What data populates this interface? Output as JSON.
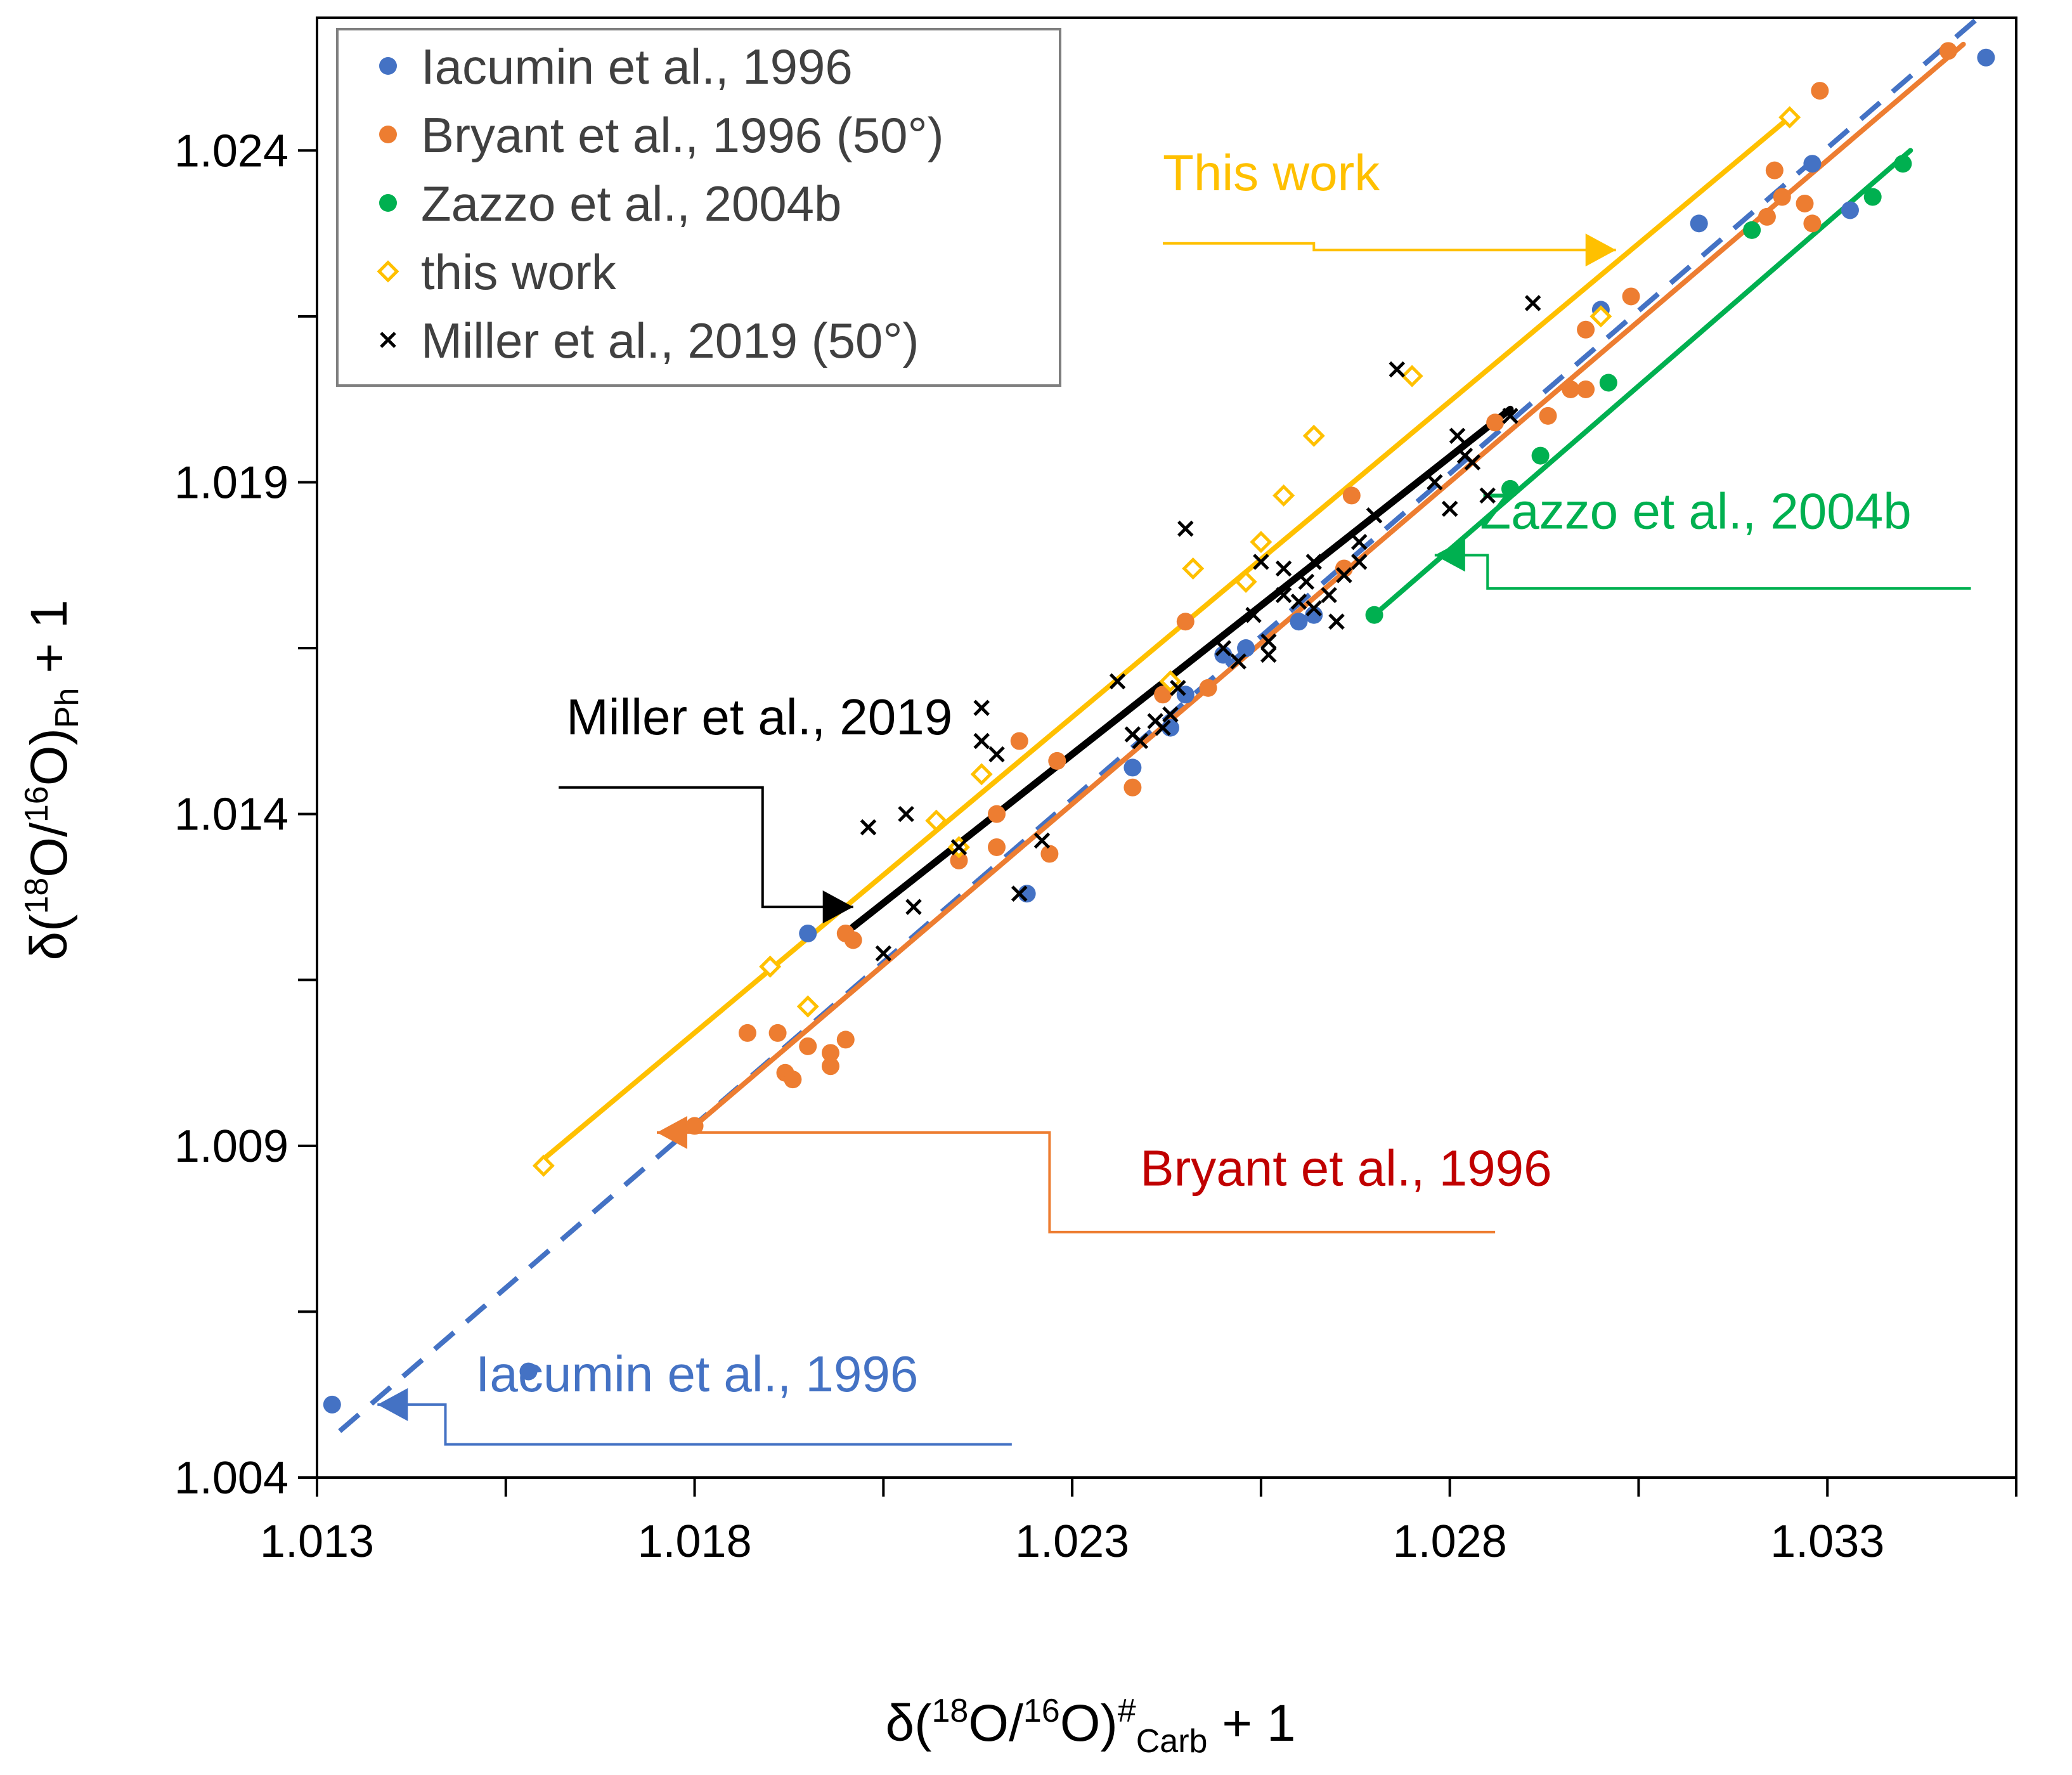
{
  "chart_data": {
    "type": "scatter",
    "xlabel_parts": [
      "δ(",
      "18",
      "O/",
      "16",
      "O)",
      "#",
      "Carb",
      " + 1"
    ],
    "ylabel_parts": [
      "δ(",
      "18",
      "O/",
      "16",
      "O)",
      "Ph",
      " + 1"
    ],
    "xlim": [
      1.013,
      1.0355
    ],
    "ylim": [
      1.004,
      1.026
    ],
    "xticks": [
      1.013,
      1.0155,
      1.018,
      1.0205,
      1.023,
      1.0255,
      1.028,
      1.0305,
      1.033,
      1.0355
    ],
    "xtick_labels": [
      "1.013",
      "",
      "1.018",
      "",
      "1.023",
      "",
      "1.028",
      "",
      "1.033",
      ""
    ],
    "yticks": [
      1.004,
      1.0065,
      1.009,
      1.0115,
      1.014,
      1.0165,
      1.019,
      1.0215,
      1.024
    ],
    "ytick_labels": [
      "1.004",
      "",
      "1.009",
      "",
      "1.014",
      "",
      "1.019",
      "",
      "1.024"
    ],
    "grid": false,
    "legend_position": "top-left",
    "colors": {
      "iacumin": "#4472C4",
      "bryant": "#ED7D31",
      "zazzo": "#00B050",
      "thiswork": "#FFC000",
      "miller": "#000000",
      "bryant_label": "#C00000"
    },
    "series": [
      {
        "name": "Iacumin et al., 1996",
        "marker": "circle",
        "color": "#4472C4",
        "points": [
          [
            1.0132,
            1.0051
          ],
          [
            1.0158,
            1.0056
          ],
          [
            1.0195,
            1.0122
          ],
          [
            1.0224,
            1.0128
          ],
          [
            1.0238,
            1.0147
          ],
          [
            1.0243,
            1.0153
          ],
          [
            1.0245,
            1.0158
          ],
          [
            1.025,
            1.0164
          ],
          [
            1.0253,
            1.0165
          ],
          [
            1.026,
            1.0169
          ],
          [
            1.0262,
            1.017
          ],
          [
            1.0313,
            1.0229
          ],
          [
            1.0328,
            1.0238
          ],
          [
            1.0333,
            1.0231
          ],
          [
            1.0351,
            1.0254
          ],
          [
            1.03,
            1.0216
          ]
        ]
      },
      {
        "name": "Bryant et al., 1996 (50°)",
        "marker": "circle",
        "color": "#ED7D31",
        "points": [
          [
            1.018,
            1.0093
          ],
          [
            1.0187,
            1.0107
          ],
          [
            1.0191,
            1.0107
          ],
          [
            1.0192,
            1.0101
          ],
          [
            1.0193,
            1.01
          ],
          [
            1.0195,
            1.0105
          ],
          [
            1.0198,
            1.0102
          ],
          [
            1.0198,
            1.0104
          ],
          [
            1.02,
            1.0106
          ],
          [
            1.02,
            1.0122
          ],
          [
            1.0201,
            1.0121
          ],
          [
            1.0215,
            1.0133
          ],
          [
            1.022,
            1.014
          ],
          [
            1.022,
            1.0135
          ],
          [
            1.0223,
            1.0151
          ],
          [
            1.0227,
            1.0134
          ],
          [
            1.0228,
            1.0148
          ],
          [
            1.0238,
            1.0144
          ],
          [
            1.0242,
            1.0158
          ],
          [
            1.0245,
            1.0169
          ],
          [
            1.0248,
            1.0159
          ],
          [
            1.0266,
            1.0177
          ],
          [
            1.0267,
            1.0188
          ],
          [
            1.0286,
            1.0199
          ],
          [
            1.0293,
            1.02
          ],
          [
            1.0296,
            1.0204
          ],
          [
            1.0298,
            1.0204
          ],
          [
            1.0298,
            1.0213
          ],
          [
            1.0304,
            1.0218
          ],
          [
            1.0322,
            1.023
          ],
          [
            1.0323,
            1.0237
          ],
          [
            1.0324,
            1.0233
          ],
          [
            1.0327,
            1.0232
          ],
          [
            1.0328,
            1.0229
          ],
          [
            1.0329,
            1.0249
          ],
          [
            1.0346,
            1.0255
          ]
        ]
      },
      {
        "name": "Zazzo et al., 2004b",
        "marker": "circle",
        "color": "#00B050",
        "points": [
          [
            1.027,
            1.017
          ],
          [
            1.0288,
            1.0189
          ],
          [
            1.0292,
            1.0194
          ],
          [
            1.0301,
            1.0205
          ],
          [
            1.032,
            1.0228
          ],
          [
            1.0336,
            1.0233
          ],
          [
            1.034,
            1.0238
          ]
        ]
      },
      {
        "name": "this work",
        "marker": "diamond",
        "color": "#FFC000",
        "points": [
          [
            1.016,
            1.0087
          ],
          [
            1.019,
            1.0117
          ],
          [
            1.0195,
            1.0111
          ],
          [
            1.0212,
            1.0139
          ],
          [
            1.0215,
            1.0135
          ],
          [
            1.0218,
            1.0146
          ],
          [
            1.0243,
            1.016
          ],
          [
            1.0246,
            1.0177
          ],
          [
            1.0253,
            1.0175
          ],
          [
            1.0255,
            1.0181
          ],
          [
            1.0258,
            1.0188
          ],
          [
            1.0262,
            1.0197
          ],
          [
            1.0275,
            1.0206
          ],
          [
            1.03,
            1.0215
          ],
          [
            1.0325,
            1.0245
          ]
        ]
      },
      {
        "name": "Miller et al., 2019 (50°)",
        "marker": "x",
        "color": "#000000",
        "points": [
          [
            1.0203,
            1.0138
          ],
          [
            1.0205,
            1.0119
          ],
          [
            1.0208,
            1.014
          ],
          [
            1.0209,
            1.0126
          ],
          [
            1.0215,
            1.0135
          ],
          [
            1.0218,
            1.0151
          ],
          [
            1.0218,
            1.0156
          ],
          [
            1.022,
            1.0149
          ],
          [
            1.0223,
            1.0128
          ],
          [
            1.0226,
            1.0136
          ],
          [
            1.0236,
            1.016
          ],
          [
            1.0238,
            1.0152
          ],
          [
            1.0239,
            1.0151
          ],
          [
            1.0241,
            1.0154
          ],
          [
            1.0242,
            1.0153
          ],
          [
            1.0243,
            1.0155
          ],
          [
            1.0244,
            1.0159
          ],
          [
            1.0245,
            1.0183
          ],
          [
            1.025,
            1.0165
          ],
          [
            1.0252,
            1.0163
          ],
          [
            1.0254,
            1.017
          ],
          [
            1.0256,
            1.0166
          ],
          [
            1.0258,
            1.0173
          ],
          [
            1.0258,
            1.0177
          ],
          [
            1.026,
            1.0172
          ],
          [
            1.0261,
            1.0175
          ],
          [
            1.0262,
            1.0178
          ],
          [
            1.0264,
            1.0173
          ],
          [
            1.0266,
            1.0176
          ],
          [
            1.0268,
            1.0181
          ],
          [
            1.027,
            1.0185
          ],
          [
            1.0273,
            1.0207
          ],
          [
            1.0278,
            1.019
          ],
          [
            1.028,
            1.0186
          ],
          [
            1.0281,
            1.0197
          ],
          [
            1.0282,
            1.0194
          ],
          [
            1.0283,
            1.0193
          ],
          [
            1.0285,
            1.0188
          ],
          [
            1.0288,
            1.02
          ],
          [
            1.0291,
            1.0217
          ],
          [
            1.0255,
            1.0178
          ],
          [
            1.0256,
            1.0164
          ],
          [
            1.0262,
            1.0171
          ],
          [
            1.0265,
            1.0169
          ],
          [
            1.0268,
            1.0178
          ]
        ]
      }
    ],
    "fit_lines": [
      {
        "name": "Iacumin et al., 1996",
        "color": "#4472C4",
        "dashed": true,
        "x": [
          1.0133,
          1.0351
        ],
        "y": [
          1.0047,
          1.0261
        ]
      },
      {
        "name": "Bryant et al., 1996",
        "color": "#ED7D31",
        "dashed": false,
        "x": [
          1.018,
          1.0348
        ],
        "y": [
          1.0093,
          1.0256
        ]
      },
      {
        "name": "Zazzo et al., 2004b",
        "color": "#00B050",
        "dashed": false,
        "x": [
          1.027,
          1.0341
        ],
        "y": [
          1.017,
          1.024
        ]
      },
      {
        "name": "This work",
        "color": "#FFC000",
        "dashed": false,
        "x": [
          1.016,
          1.0325
        ],
        "y": [
          1.0088,
          1.0245
        ]
      },
      {
        "name": "Miller et al., 2019",
        "color": "#000000",
        "dashed": false,
        "x": [
          1.0201,
          1.0288
        ],
        "y": [
          1.0123,
          1.0201
        ]
      }
    ],
    "annotations": [
      {
        "text": "This work",
        "color": "#FFC000",
        "points": [
          [
            1.0242,
            1.0226
          ],
          [
            1.0262,
            1.0226
          ],
          [
            1.0262,
            1.0225
          ],
          [
            1.0302,
            1.0225
          ]
        ],
        "text_at": [
          1.0242,
          1.0234
        ]
      },
      {
        "text": "Zazzo et al., 2004b",
        "color": "#00B050",
        "points": [
          [
            1.0349,
            1.0174
          ],
          [
            1.0285,
            1.0174
          ],
          [
            1.0285,
            1.0179
          ],
          [
            1.0278,
            1.0179
          ]
        ],
        "text_at": [
          1.0284,
          1.0183
        ]
      },
      {
        "text": "Miller et al., 2019",
        "color": "#000000",
        "points": [
          [
            1.0162,
            1.0144
          ],
          [
            1.0189,
            1.0144
          ],
          [
            1.0189,
            1.0126
          ],
          [
            1.0201,
            1.0126
          ]
        ],
        "text_at": [
          1.0163,
          1.0152
        ]
      },
      {
        "text": "Bryant et al., 1996",
        "color": "#C00000",
        "line_color": "#ED7D31",
        "points": [
          [
            1.0286,
            1.0077
          ],
          [
            1.0227,
            1.0077
          ],
          [
            1.0227,
            1.0092
          ],
          [
            1.0175,
            1.0092
          ]
        ],
        "text_at": [
          1.0239,
          1.0084
        ]
      },
      {
        "text": "Iacumin et al., 1996",
        "color": "#4472C4",
        "points": [
          [
            1.0222,
            1.0045
          ],
          [
            1.0147,
            1.0045
          ],
          [
            1.0147,
            1.0051
          ],
          [
            1.0138,
            1.0051
          ]
        ],
        "text_at": [
          1.0151,
          1.0053
        ]
      }
    ]
  }
}
